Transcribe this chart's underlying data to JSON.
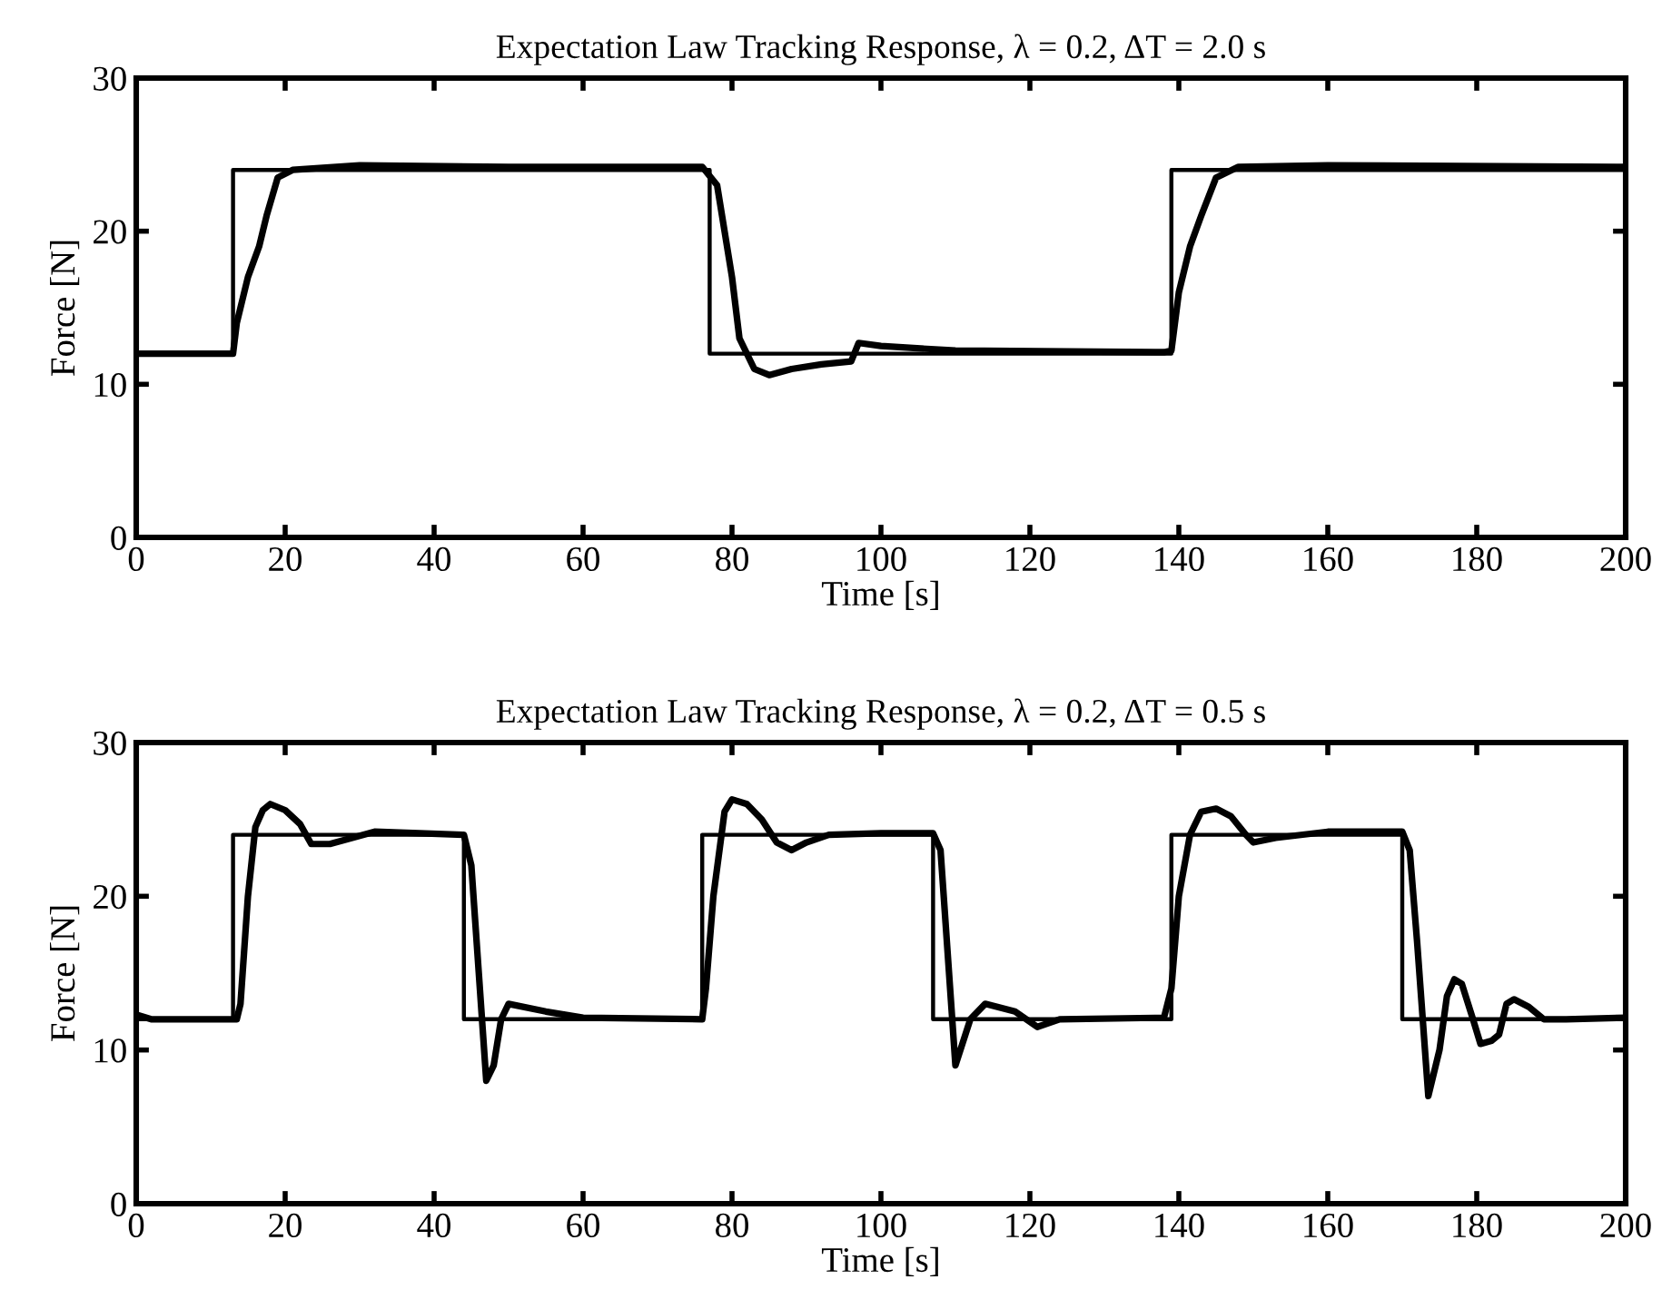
{
  "chart_data": [
    {
      "type": "line",
      "title": "Expectation Law Tracking Response, λ = 0.2, ΔT = 2.0 s",
      "xlabel": "Time [s]",
      "ylabel": "Force [N]",
      "xlim": [
        0,
        200
      ],
      "ylim": [
        0,
        30
      ],
      "xticks": [
        0,
        20,
        40,
        60,
        80,
        100,
        120,
        140,
        160,
        180,
        200
      ],
      "yticks": [
        0,
        10,
        20,
        30
      ],
      "grid": false,
      "legend": false,
      "marker": "none",
      "line_style": "solid",
      "series": [
        {
          "color": "#000000",
          "x": [
            0,
            13,
            13,
            77,
            77,
            139,
            139,
            200
          ],
          "values": [
            12,
            12,
            24,
            24,
            12,
            12,
            24,
            24
          ]
        },
        {
          "color": "#000000",
          "x": [
            0,
            13,
            13.5,
            15,
            16.5,
            17.5,
            19,
            21,
            30,
            50,
            76,
            78,
            80,
            81,
            83,
            85,
            88,
            92,
            96,
            97,
            100,
            110,
            138,
            139,
            140,
            141.5,
            143,
            145,
            148,
            160,
            200
          ],
          "values": [
            12,
            12,
            14,
            17,
            19,
            21,
            23.5,
            24,
            24.3,
            24.2,
            24.2,
            23,
            17,
            13,
            11,
            10.6,
            11,
            11.3,
            11.5,
            12.7,
            12.5,
            12.2,
            12.1,
            12.2,
            16,
            19,
            21,
            23.5,
            24.2,
            24.3,
            24.2
          ]
        }
      ]
    },
    {
      "type": "line",
      "title": "Expectation Law Tracking Response, λ = 0.2, ΔT = 0.5 s",
      "xlabel": "Time [s]",
      "ylabel": "Force [N]",
      "xlim": [
        0,
        200
      ],
      "ylim": [
        0,
        30
      ],
      "xticks": [
        0,
        20,
        40,
        60,
        80,
        100,
        120,
        140,
        160,
        180,
        200
      ],
      "yticks": [
        0,
        10,
        20,
        30
      ],
      "grid": false,
      "legend": false,
      "marker": "none",
      "line_style": "solid",
      "series": [
        {
          "color": "#000000",
          "x": [
            0,
            13,
            13,
            44,
            44,
            76,
            76,
            107,
            107,
            139,
            139,
            170,
            170,
            200
          ],
          "values": [
            12,
            12,
            24,
            24,
            12,
            12,
            24,
            24,
            12,
            12,
            24,
            24,
            12,
            12
          ]
        },
        {
          "color": "#000000",
          "x": [
            0,
            2,
            13.5,
            14,
            15,
            16,
            17,
            18,
            20,
            22,
            23.5,
            26,
            29,
            32,
            38,
            44,
            45,
            46,
            47,
            48,
            49,
            50,
            55,
            60,
            76,
            76.5,
            77.5,
            79,
            80,
            82,
            84,
            86,
            88,
            90,
            93,
            100,
            107,
            108,
            110,
            112,
            114,
            118,
            121,
            124,
            138,
            139,
            140,
            141.5,
            143,
            145,
            147,
            149,
            150,
            153,
            160,
            170,
            171,
            172,
            173.5,
            175,
            176,
            177,
            178,
            179.5,
            180.5,
            182,
            183,
            184,
            185,
            187,
            189,
            192,
            200
          ],
          "values": [
            12.3,
            12,
            12,
            13,
            20,
            24.5,
            25.6,
            26,
            25.6,
            24.7,
            23.4,
            23.4,
            23.8,
            24.2,
            24.1,
            24,
            22,
            15,
            8,
            9,
            12,
            13,
            12.5,
            12.1,
            12,
            14,
            20,
            25.5,
            26.3,
            26,
            25,
            23.5,
            23,
            23.5,
            24,
            24.1,
            24.1,
            23,
            9,
            12,
            13,
            12.5,
            11.5,
            12,
            12.1,
            14,
            20,
            24,
            25.5,
            25.7,
            25.2,
            24,
            23.5,
            23.8,
            24.2,
            24.2,
            23,
            17,
            7,
            10,
            13.5,
            14.6,
            14.3,
            12,
            10.4,
            10.6,
            11,
            13,
            13.3,
            12.8,
            12,
            12,
            12.1
          ]
        }
      ]
    }
  ]
}
